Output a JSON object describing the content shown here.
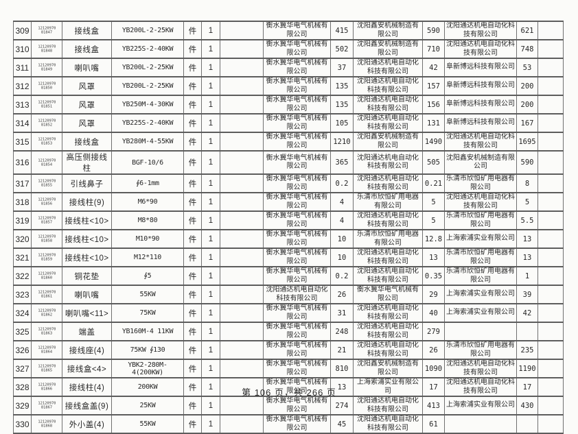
{
  "footer": {
    "text": "第 106 页，共 266 页"
  },
  "table": {
    "rows": [
      {
        "no": "309",
        "code1": "12120970",
        "code2": "81847",
        "name": "接线盒",
        "spec": "YB200L-2-25KW",
        "unit": "件",
        "qty": "1",
        "s1": "衡水冀华电气机械有限公司",
        "v1": "415",
        "s2": "沈阳鑫安机械制造有限公司",
        "v2": "590",
        "s3": "沈阳通达机电自动化科技有限公司",
        "v3": "621"
      },
      {
        "no": "310",
        "code1": "12120970",
        "code2": "81848",
        "name": "接线盒",
        "spec": "YB225S-2-40KW",
        "unit": "件",
        "qty": "1",
        "s1": "衡水冀华电气机械有限公司",
        "v1": "502",
        "s2": "沈阳鑫安机械制造有限公司",
        "v2": "710",
        "s3": "沈阳通达机电自动化科技有限公司",
        "v3": "748"
      },
      {
        "no": "311",
        "code1": "12120970",
        "code2": "81849",
        "name": "喇叭嘴",
        "spec": "YB200L-2-25KW",
        "unit": "件",
        "qty": "1",
        "s1": "衡水冀华电气机械有限公司",
        "v1": "37",
        "s2": "沈阳通达机电自动化科技有限公司",
        "v2": "42",
        "s3": "阜新博远科技有限公司",
        "v3": "53"
      },
      {
        "no": "312",
        "code1": "12120970",
        "code2": "81850",
        "name": "风罩",
        "spec": "YB200L-2-25KW",
        "unit": "件",
        "qty": "1",
        "s1": "衡水冀华电气机械有限公司",
        "v1": "135",
        "s2": "沈阳通达机电自动化科技有限公司",
        "v2": "157",
        "s3": "阜新博远科技有限公司",
        "v3": "200"
      },
      {
        "no": "313",
        "code1": "12120970",
        "code2": "81851",
        "name": "风罩",
        "spec": "YB250M-4-30KW",
        "unit": "件",
        "qty": "1",
        "s1": "衡水冀华电气机械有限公司",
        "v1": "135",
        "s2": "沈阳通达机电自动化科技有限公司",
        "v2": "156",
        "s3": "阜新博远科技有限公司",
        "v3": "200"
      },
      {
        "no": "314",
        "code1": "12120970",
        "code2": "81852",
        "name": "风罩",
        "spec": "YB225S-2-40KW",
        "unit": "件",
        "qty": "1",
        "s1": "衡水冀华电气机械有限公司",
        "v1": "105",
        "s2": "沈阳通达机电自动化科技有限公司",
        "v2": "131",
        "s3": "阜新博远科技有限公司",
        "v3": "167"
      },
      {
        "no": "315",
        "code1": "12120970",
        "code2": "81853",
        "name": "接线盒",
        "spec": "YB280M-4-55KW",
        "unit": "件",
        "qty": "1",
        "s1": "衡水冀华电气机械有限公司",
        "v1": "1210",
        "s2": "沈阳鑫安机械制造有限公司",
        "v2": "1490",
        "s3": "沈阳通达机电自动化科技有限公司",
        "v3": "1695"
      },
      {
        "no": "316",
        "code1": "12120970",
        "code2": "81854",
        "name": "高压侧接线柱",
        "spec": "BGF-10/6",
        "unit": "件",
        "qty": "1",
        "s1": "衡水冀华电气机械有限公司",
        "v1": "365",
        "s2": "沈阳通达机电自动化科技有限公司",
        "v2": "505",
        "s3": "沈阳鑫安机械制造有限公司",
        "v3": "590"
      },
      {
        "no": "317",
        "code1": "12120970",
        "code2": "81855",
        "name": "引线鼻子",
        "spec": "∮6-1mm",
        "unit": "件",
        "qty": "1",
        "s1": "衡水冀华电气机械有限公司",
        "v1": "0.2",
        "s2": "沈阳通达机电自动化科技有限公司",
        "v2": "0.21",
        "s3": "乐清市欣恒矿用电器有限公司",
        "v3": "8"
      },
      {
        "no": "318",
        "code1": "12120970",
        "code2": "81856",
        "name": "接线柱(9)",
        "spec": "M6*90",
        "unit": "件",
        "qty": "1",
        "s1": "衡水冀华电气机械有限公司",
        "v1": "4",
        "s2": "乐清市欣恒矿用电器有限公司",
        "v2": "5",
        "s3": "沈阳通达机电自动化科技有限公司",
        "v3": "5"
      },
      {
        "no": "319",
        "code1": "12120970",
        "code2": "81857",
        "name": "接线柱<10>",
        "spec": "M8*80",
        "unit": "件",
        "qty": "1",
        "s1": "衡水冀华电气机械有限公司",
        "v1": "4",
        "s2": "沈阳通达机电自动化科技有限公司",
        "v2": "5",
        "s3": "乐清市欣恒矿用电器有限公司",
        "v3": "5.5"
      },
      {
        "no": "320",
        "code1": "12120970",
        "code2": "81858",
        "name": "接线柱<10>",
        "spec": "M10*90",
        "unit": "件",
        "qty": "1",
        "s1": "衡水冀华电气机械有限公司",
        "v1": "10",
        "s2": "乐清市欣恒矿用电器有限公司",
        "v2": "12.8",
        "s3": "上海索浦实业有限公司",
        "v3": "13"
      },
      {
        "no": "321",
        "code1": "12120970",
        "code2": "81859",
        "name": "接线柱<10>",
        "spec": "M12*110",
        "unit": "件",
        "qty": "1",
        "s1": "衡水冀华电气机械有限公司",
        "v1": "10",
        "s2": "沈阳通达机电自动化科技有限公司",
        "v2": "13",
        "s3": "乐清市欣恒矿用电器有限公司",
        "v3": "13"
      },
      {
        "no": "322",
        "code1": "12120970",
        "code2": "81860",
        "name": "铜花垫",
        "spec": "∮5",
        "unit": "件",
        "qty": "1",
        "s1": "衡水冀华电气机械有限公司",
        "v1": "0.2",
        "s2": "沈阳通达机电自动化科技有限公司",
        "v2": "0.35",
        "s3": "乐清市欣恒矿用电器有限公司",
        "v3": "1"
      },
      {
        "no": "323",
        "code1": "12120970",
        "code2": "81861",
        "name": "喇叭嘴",
        "spec": "55KW",
        "unit": "件",
        "qty": "1",
        "s1": "沈阳通达机电自动化科技有限公司",
        "v1": "26",
        "s2": "衡水冀华电气机械有限公司",
        "v2": "29",
        "s3": "上海索浦实业有限公司",
        "v3": "39"
      },
      {
        "no": "324",
        "code1": "12120970",
        "code2": "81862",
        "name": "喇叭嘴<11>",
        "spec": "75KW",
        "unit": "件",
        "qty": "1",
        "s1": "衡水冀华电气机械有限公司",
        "v1": "31",
        "s2": "沈阳通达机电自动化科技有限公司",
        "v2": "40",
        "s3": "上海索浦实业有限公司",
        "v3": "42"
      },
      {
        "no": "325",
        "code1": "12120970",
        "code2": "81863",
        "name": "端盖",
        "spec": "YB160M-4 11KW",
        "unit": "件",
        "qty": "1",
        "s1": "衡水冀华电气机械有限公司",
        "v1": "248",
        "s2": "沈阳通达机电自动化科技有限公司",
        "v2": "279",
        "s3": "",
        "v3": ""
      },
      {
        "no": "326",
        "code1": "12120970",
        "code2": "81864",
        "name": "接线座(4)",
        "spec": "75KW ∮130",
        "unit": "件",
        "qty": "1",
        "s1": "衡水冀华电气机械有限公司",
        "v1": "21",
        "s2": "沈阳通达机电自动化科技有限公司",
        "v2": "26",
        "s3": "乐清市欣恒矿用电器有限公司",
        "v3": "235"
      },
      {
        "no": "327",
        "code1": "12120970",
        "code2": "81865",
        "name": "接线盒<4>",
        "spec": "YBK2-280M-4(200KW)",
        "unit": "件",
        "qty": "1",
        "s1": "衡水冀华电气机械有限公司",
        "v1": "810",
        "s2": "沈阳鑫安机械制造有限公司",
        "v2": "1090",
        "s3": "沈阳通达机电自动化科技有限公司",
        "v3": "1190"
      },
      {
        "no": "328",
        "code1": "12120970",
        "code2": "81866",
        "name": "接线柱(4)",
        "spec": "200KW",
        "unit": "件",
        "qty": "1",
        "s1": "衡水冀华电气机械有限公司",
        "v1": "13",
        "s2": "上海索浦实业有限公司",
        "v2": "17",
        "s3": "沈阳通达机电自动化科技有限公司",
        "v3": "17"
      },
      {
        "no": "329",
        "code1": "12120970",
        "code2": "81867",
        "name": "接线盒盖(9)",
        "spec": "25KW",
        "unit": "件",
        "qty": "1",
        "s1": "衡水冀华电气机械有限公司",
        "v1": "274",
        "s2": "沈阳通达机电自动化科技有限公司",
        "v2": "413",
        "s3": "上海索浦实业有限公司",
        "v3": "430"
      },
      {
        "no": "330",
        "code1": "12120970",
        "code2": "81868",
        "name": "外小盖(4)",
        "spec": "55KW",
        "unit": "件",
        "qty": "1",
        "s1": "衡水冀华电气机械有限公司",
        "v1": "45",
        "s2": "沈阳通达机电自动化科技有限公司",
        "v2": "61",
        "s3": "",
        "v3": ""
      }
    ]
  }
}
